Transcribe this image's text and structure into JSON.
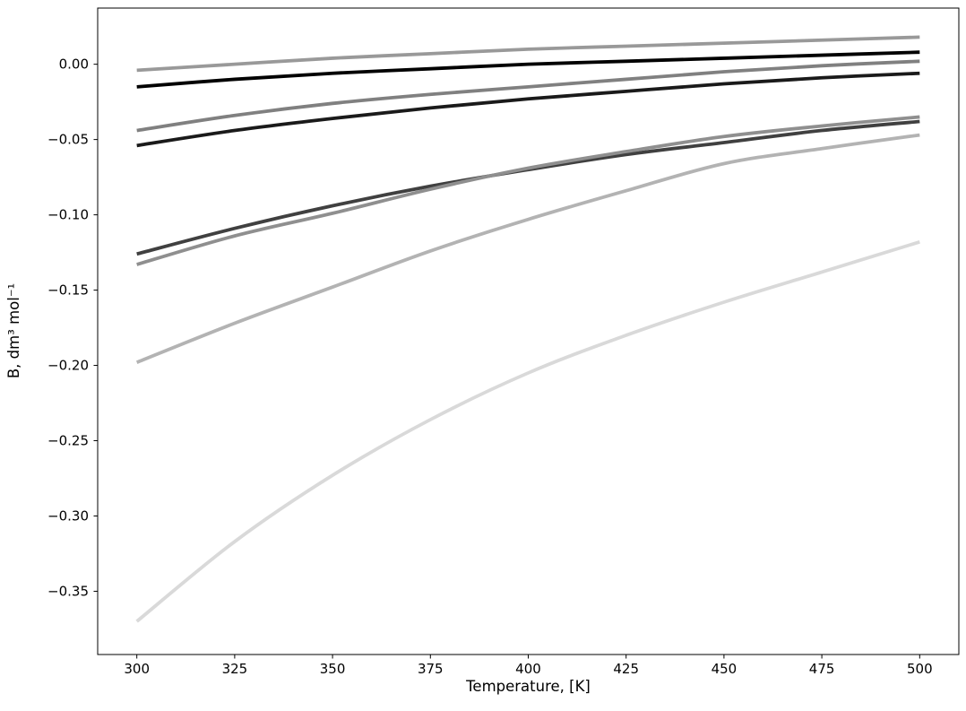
{
  "figure": {
    "background": "#ffffff",
    "spine_color": "#000000",
    "tick_color": "#000000"
  },
  "chart_data": {
    "type": "line",
    "title": "",
    "xlabel": "Temperature, [K]",
    "ylabel": "B, dm³ mol⁻¹",
    "grid": false,
    "legend_position": "none",
    "xlim": [
      290,
      510
    ],
    "ylim": [
      -0.392,
      0.0373
    ],
    "x_ticks": [
      300,
      325,
      350,
      375,
      400,
      425,
      450,
      475,
      500
    ],
    "x_tick_labels": [
      "300",
      "325",
      "350",
      "375",
      "400",
      "425",
      "450",
      "475",
      "500"
    ],
    "y_ticks": [
      0.0,
      -0.05,
      -0.1,
      -0.15,
      -0.2,
      -0.25,
      -0.3,
      -0.35
    ],
    "y_tick_labels": [
      "0.00",
      "−0.05",
      "−0.10",
      "−0.15",
      "−0.20",
      "−0.25",
      "−0.30",
      "−0.35"
    ],
    "x": [
      300,
      325,
      350,
      375,
      400,
      425,
      450,
      475,
      500
    ],
    "series": [
      {
        "name": "curve-1",
        "color": "#999999",
        "line_width": 3.8,
        "values": [
          -0.004,
          0.0,
          0.004,
          0.007,
          0.01,
          0.012,
          0.014,
          0.016,
          0.018
        ]
      },
      {
        "name": "curve-2",
        "color": "#000000",
        "line_width": 3.8,
        "values": [
          -0.015,
          -0.01,
          -0.006,
          -0.003,
          0.0,
          0.002,
          0.004,
          0.006,
          0.008
        ]
      },
      {
        "name": "curve-3",
        "color": "#808080",
        "line_width": 3.8,
        "values": [
          -0.044,
          -0.034,
          -0.026,
          -0.02,
          -0.015,
          -0.01,
          -0.005,
          -0.001,
          0.002
        ]
      },
      {
        "name": "curve-4",
        "color": "#1a1a1a",
        "line_width": 3.8,
        "values": [
          -0.054,
          -0.044,
          -0.036,
          -0.029,
          -0.023,
          -0.018,
          -0.013,
          -0.009,
          -0.006
        ]
      },
      {
        "name": "curve-5",
        "color": "#404040",
        "line_width": 3.8,
        "values": [
          -0.126,
          -0.109,
          -0.094,
          -0.081,
          -0.07,
          -0.06,
          -0.052,
          -0.044,
          -0.038
        ]
      },
      {
        "name": "curve-6",
        "color": "#8f8f8f",
        "line_width": 3.8,
        "values": [
          -0.133,
          -0.114,
          -0.099,
          -0.083,
          -0.069,
          -0.058,
          -0.048,
          -0.041,
          -0.035
        ]
      },
      {
        "name": "curve-7",
        "color": "#b3b3b3",
        "line_width": 3.8,
        "values": [
          -0.198,
          -0.172,
          -0.148,
          -0.124,
          -0.103,
          -0.084,
          -0.066,
          -0.056,
          -0.047
        ]
      },
      {
        "name": "curve-8",
        "color": "#d9d9d9",
        "line_width": 3.8,
        "values": [
          -0.37,
          -0.317,
          -0.273,
          -0.236,
          -0.205,
          -0.18,
          -0.158,
          -0.138,
          -0.118
        ]
      }
    ]
  }
}
